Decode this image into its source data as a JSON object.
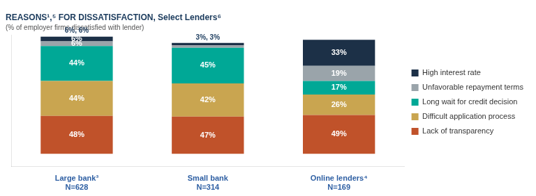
{
  "chart_data": {
    "type": "bar",
    "title": "REASONS¹,⁵ FOR DISSATISFACTION, Select Lenders⁶",
    "subtitle": "(% of employer firms dissatisfied with lender)",
    "categories": [
      [
        "Large bank³",
        "N=628"
      ],
      [
        "Small bank",
        "N=314"
      ],
      [
        "Online lenders⁴",
        "N=169"
      ]
    ],
    "series": [
      {
        "name": "High interest rate",
        "color": "#1c3047",
        "values": [
          6,
          3,
          33
        ],
        "value_labels": [
          "6%",
          null,
          "33%"
        ]
      },
      {
        "name": "Unfavorable repayment terms",
        "color": "#9aa4aa",
        "values": [
          6,
          3,
          19
        ],
        "value_labels": [
          "6%",
          null,
          "19%"
        ]
      },
      {
        "name": "Long wait for credit decision",
        "color": "#00a896",
        "values": [
          44,
          45,
          17
        ],
        "value_labels": [
          "44%",
          "45%",
          "17%"
        ]
      },
      {
        "name": "Difficult application process",
        "color": "#c9a550",
        "values": [
          44,
          42,
          26
        ],
        "value_labels": [
          "44%",
          "42%",
          "26%"
        ]
      },
      {
        "name": "Lack of transparency",
        "color": "#c0522a",
        "values": [
          48,
          47,
          49
        ],
        "value_labels": [
          "48%",
          "47%",
          "49%"
        ]
      }
    ],
    "annotations": [
      {
        "text": "6%, 6%",
        "category": "Large bank³"
      },
      {
        "text": "3%, 3%",
        "category": "Small bank"
      }
    ],
    "stacked": true,
    "data_labels": true,
    "legend": "right",
    "grid": false,
    "tick_labels": "x",
    "ylim": [
      -16,
      150
    ]
  }
}
